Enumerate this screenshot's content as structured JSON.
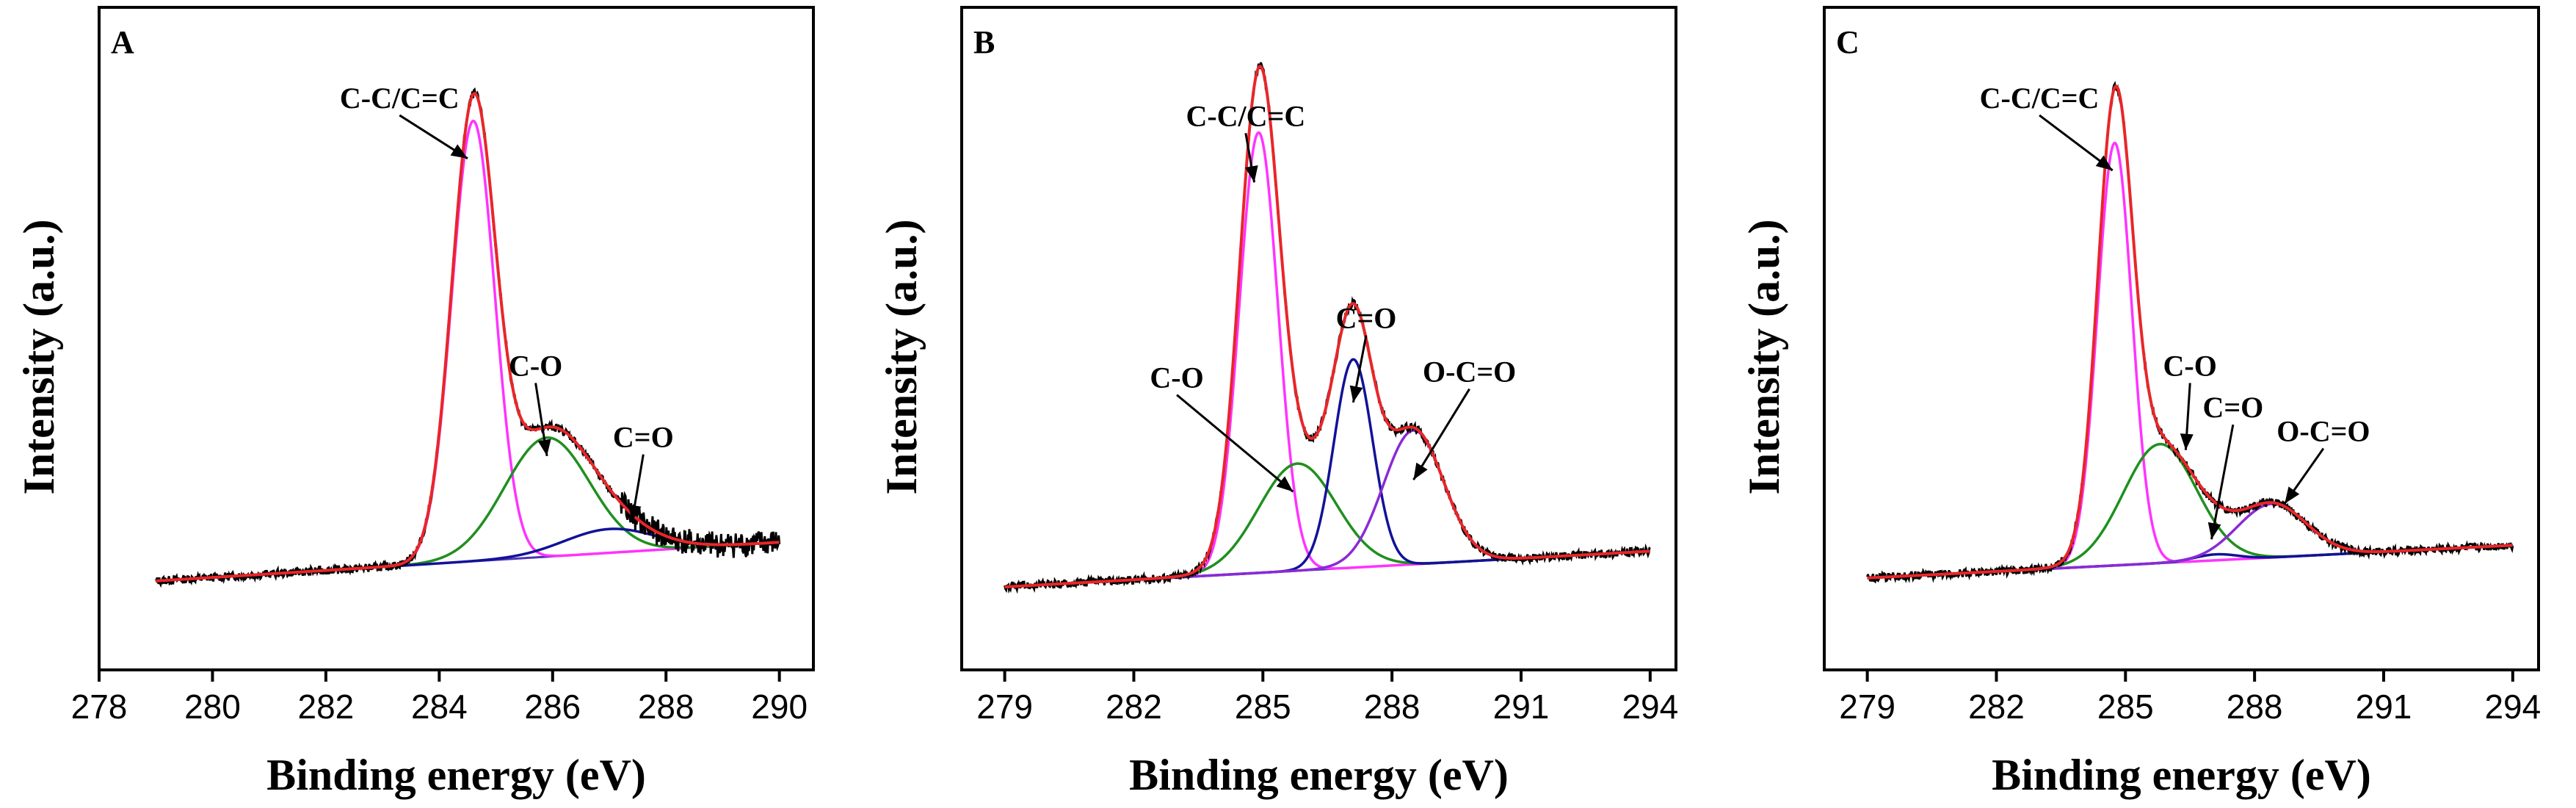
{
  "colors": {
    "raw": "#000000",
    "envelope": "#e8262a",
    "cc": "#ff33ff",
    "co": "#1f8f1f",
    "c_eq_o": "#121298",
    "ocdo": "#8a2ad6",
    "baseline": "#4a33b8",
    "text": "#000000"
  },
  "chart_data": [
    {
      "type": "line",
      "panel_label": "A",
      "xlabel": "Binding energy (eV)",
      "ylabel": "Intensity (a.u.)",
      "xlim": [
        278,
        290.6
      ],
      "ylim": [
        0,
        1
      ],
      "xticks": [
        278,
        280,
        282,
        284,
        286,
        288,
        290
      ],
      "xtick_labels": [
        "278",
        "280",
        "282",
        "284",
        "286",
        "288",
        "290"
      ],
      "data_range": [
        279,
        290
      ],
      "baseline_start": 0.11,
      "baseline_end": 0.175,
      "components": [
        {
          "name": "C-C/C=C",
          "center": 284.6,
          "amplitude": 0.74,
          "sigma": 0.38
        },
        {
          "name": "C-O",
          "center": 285.9,
          "amplitude": 0.2,
          "sigma": 0.75
        },
        {
          "name": "C=O",
          "center": 287.0,
          "amplitude": 0.04,
          "sigma": 0.8
        }
      ],
      "annotations": [
        {
          "text": "C-C/C=C",
          "label_x": 283.3,
          "label_y": 0.905,
          "target_x": 284.5,
          "target_y": 0.82
        },
        {
          "text": "C-O",
          "label_x": 285.7,
          "label_y": 0.455,
          "target_x": 285.9,
          "target_y": 0.32
        },
        {
          "text": "C=O",
          "label_x": 287.6,
          "label_y": 0.335,
          "target_x": 287.4,
          "target_y": 0.21
        }
      ]
    },
    {
      "type": "line",
      "panel_label": "B",
      "xlabel": "Binding energy (eV)",
      "ylabel": "Intensity (a.u.)",
      "xlim": [
        278,
        294.6
      ],
      "ylim": [
        0,
        1
      ],
      "xticks": [
        279,
        282,
        285,
        288,
        291,
        294
      ],
      "xtick_labels": [
        "279",
        "282",
        "285",
        "288",
        "291",
        "294"
      ],
      "data_range": [
        279,
        294
      ],
      "baseline_start": 0.1,
      "baseline_end": 0.16,
      "components": [
        {
          "name": "C-C/C=C",
          "center": 284.9,
          "amplitude": 0.74,
          "sigma": 0.45
        },
        {
          "name": "C-O",
          "center": 285.8,
          "amplitude": 0.18,
          "sigma": 0.9
        },
        {
          "name": "C=O",
          "center": 287.1,
          "amplitude": 0.35,
          "sigma": 0.45
        },
        {
          "name": "O-C=O",
          "center": 288.5,
          "amplitude": 0.225,
          "sigma": 0.7
        }
      ],
      "annotations": [
        {
          "text": "C-C/C=C",
          "label_x": 284.6,
          "label_y": 0.875,
          "target_x": 284.8,
          "target_y": 0.78
        },
        {
          "text": "C-O",
          "label_x": 283.0,
          "label_y": 0.435,
          "target_x": 285.7,
          "target_y": 0.26
        },
        {
          "text": "C=O",
          "label_x": 287.4,
          "label_y": 0.535,
          "target_x": 287.1,
          "target_y": 0.41
        },
        {
          "text": "O-C=O",
          "label_x": 289.8,
          "label_y": 0.445,
          "target_x": 288.5,
          "target_y": 0.28
        }
      ]
    },
    {
      "type": "line",
      "panel_label": "C",
      "xlabel": "Binding energy (eV)",
      "ylabel": "Intensity (a.u.)",
      "xlim": [
        278,
        294.6
      ],
      "ylim": [
        0,
        1
      ],
      "xticks": [
        279,
        282,
        285,
        288,
        291,
        294
      ],
      "xtick_labels": [
        "279",
        "282",
        "285",
        "288",
        "291",
        "294"
      ],
      "data_range": [
        279,
        294
      ],
      "baseline_start": 0.115,
      "baseline_end": 0.17,
      "components": [
        {
          "name": "C-C/C=C",
          "center": 284.75,
          "amplitude": 0.71,
          "sigma": 0.4
        },
        {
          "name": "C-O",
          "center": 285.8,
          "amplitude": 0.2,
          "sigma": 0.85
        },
        {
          "name": "C=O",
          "center": 287.1,
          "amplitude": 0.01,
          "sigma": 0.5
        },
        {
          "name": "O-C=O",
          "center": 288.4,
          "amplitude": 0.09,
          "sigma": 0.8
        }
      ],
      "annotations": [
        {
          "text": "C-C/C=C",
          "label_x": 283.0,
          "label_y": 0.905,
          "target_x": 284.7,
          "target_y": 0.8
        },
        {
          "text": "C-O",
          "label_x": 286.5,
          "label_y": 0.455,
          "target_x": 286.4,
          "target_y": 0.33
        },
        {
          "text": "C=O",
          "label_x": 287.5,
          "label_y": 0.385,
          "target_x": 287.0,
          "target_y": 0.18
        },
        {
          "text": "O-C=O",
          "label_x": 289.6,
          "label_y": 0.345,
          "target_x": 288.7,
          "target_y": 0.24
        }
      ]
    }
  ]
}
